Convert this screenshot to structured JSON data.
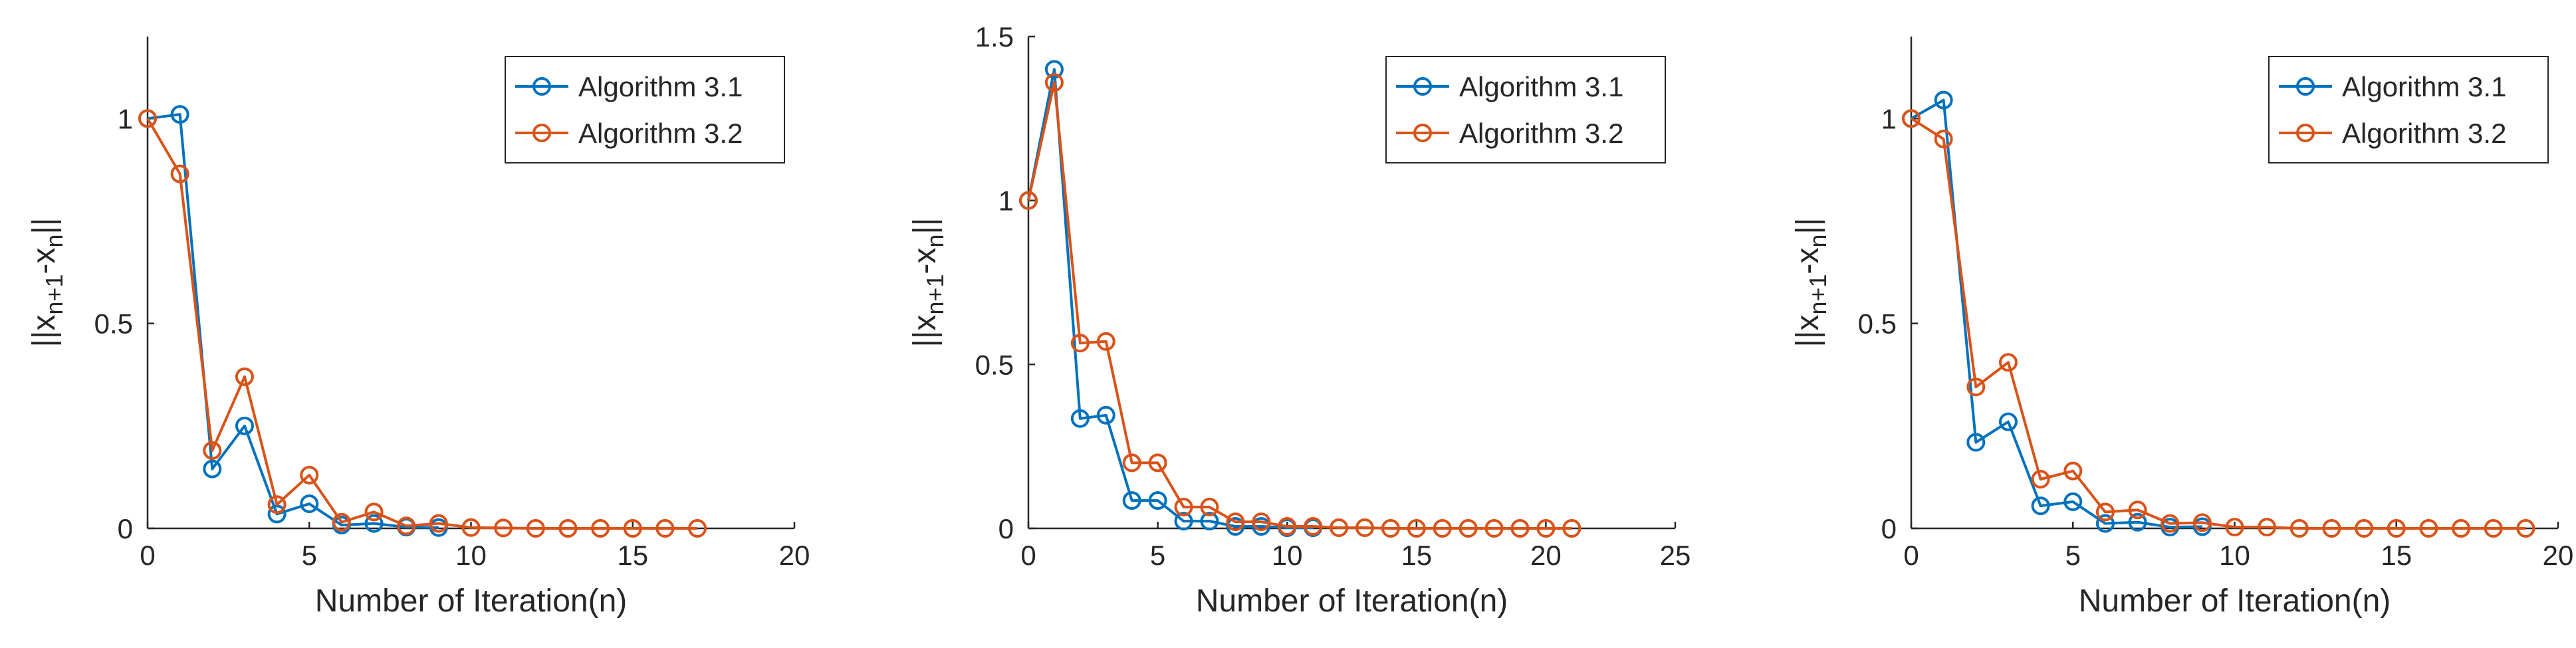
{
  "colors": {
    "algorithm_3_1": "#0072BD",
    "algorithm_3_2": "#D95319",
    "axis": "#262626"
  },
  "chart_data": [
    {
      "type": "line",
      "title": "",
      "xlabel": "Number of Iteration(n)",
      "ylabel": "||x_{n+1}-x_n||",
      "ylabel_parts": {
        "pre": "||x",
        "sub1": "n+1",
        "mid": "-x",
        "sub2": "n",
        "post": "||"
      },
      "xlim": [
        0,
        20
      ],
      "ylim": [
        0,
        1.2
      ],
      "xticks": [
        0,
        5,
        10,
        15,
        20
      ],
      "xtick_labels": [
        "0",
        "5",
        "10",
        "15",
        "20"
      ],
      "yticks": [
        0,
        0.5,
        1
      ],
      "ytick_labels": [
        "0",
        "0.5",
        "1"
      ],
      "legend_position": "top-right",
      "series": [
        {
          "name": "Algorithm 3.1",
          "color": "#0072BD",
          "x": [
            0,
            1,
            2,
            3,
            4,
            5,
            6,
            7,
            8,
            9
          ],
          "y": [
            1.0,
            1.01,
            0.145,
            0.25,
            0.035,
            0.06,
            0.008,
            0.012,
            0.003,
            0.002
          ]
        },
        {
          "name": "Algorithm 3.2",
          "color": "#D95319",
          "x": [
            0,
            1,
            2,
            3,
            4,
            5,
            6,
            7,
            8,
            9,
            10,
            11,
            12,
            13,
            14,
            15,
            16,
            17
          ],
          "y": [
            1.0,
            0.865,
            0.19,
            0.37,
            0.058,
            0.13,
            0.015,
            0.04,
            0.006,
            0.012,
            0.002,
            0.001,
            0.0,
            0.0,
            0.0,
            0.0,
            0.0,
            0.0
          ]
        }
      ]
    },
    {
      "type": "line",
      "title": "",
      "xlabel": "Number of Iteration(n)",
      "ylabel": "||x_{n+1}-x_n||",
      "ylabel_parts": {
        "pre": "||x",
        "sub1": "n+1",
        "mid": "-x",
        "sub2": "n",
        "post": "||"
      },
      "xlim": [
        0,
        25
      ],
      "ylim": [
        0,
        1.5
      ],
      "xticks": [
        0,
        5,
        10,
        15,
        20,
        25
      ],
      "xtick_labels": [
        "0",
        "5",
        "10",
        "15",
        "20",
        "25"
      ],
      "yticks": [
        0,
        0.5,
        1,
        1.5
      ],
      "ytick_labels": [
        "0",
        "0.5",
        "1",
        "1.5"
      ],
      "legend_position": "top-right",
      "series": [
        {
          "name": "Algorithm 3.1",
          "color": "#0072BD",
          "x": [
            0,
            1,
            2,
            3,
            4,
            5,
            6,
            7,
            8,
            9,
            10,
            11
          ],
          "y": [
            1.0,
            1.4,
            0.335,
            0.345,
            0.085,
            0.085,
            0.022,
            0.022,
            0.006,
            0.006,
            0.002,
            0.002
          ]
        },
        {
          "name": "Algorithm 3.2",
          "color": "#D95319",
          "x": [
            0,
            1,
            2,
            3,
            4,
            5,
            6,
            7,
            8,
            9,
            10,
            11,
            12,
            13,
            14,
            15,
            16,
            17,
            18,
            19,
            20,
            21
          ],
          "y": [
            1.0,
            1.36,
            0.565,
            0.57,
            0.2,
            0.2,
            0.065,
            0.065,
            0.02,
            0.02,
            0.006,
            0.006,
            0.002,
            0.002,
            0.0,
            0.0,
            0.0,
            0.0,
            0.0,
            0.0,
            0.0,
            0.0
          ]
        }
      ]
    },
    {
      "type": "line",
      "title": "",
      "xlabel": "Number of Iteration(n)",
      "ylabel": "||x_{n+1}-x_n||",
      "ylabel_parts": {
        "pre": "||x",
        "sub1": "n+1",
        "mid": "-x",
        "sub2": "n",
        "post": "||"
      },
      "xlim": [
        0,
        20
      ],
      "ylim": [
        0,
        1.2
      ],
      "xticks": [
        0,
        5,
        10,
        15,
        20
      ],
      "xtick_labels": [
        "0",
        "5",
        "10",
        "15",
        "20"
      ],
      "yticks": [
        0,
        0.5,
        1
      ],
      "ytick_labels": [
        "0",
        "0.5",
        "1"
      ],
      "legend_position": "top-right",
      "series": [
        {
          "name": "Algorithm 3.1",
          "color": "#0072BD",
          "x": [
            0,
            1,
            2,
            3,
            4,
            5,
            6,
            7,
            8,
            9
          ],
          "y": [
            1.0,
            1.045,
            0.21,
            0.26,
            0.055,
            0.065,
            0.012,
            0.015,
            0.003,
            0.004
          ]
        },
        {
          "name": "Algorithm 3.2",
          "color": "#D95319",
          "x": [
            0,
            1,
            2,
            3,
            4,
            5,
            6,
            7,
            8,
            9,
            10,
            11,
            12,
            13,
            14,
            15,
            16,
            17,
            18,
            19
          ],
          "y": [
            1.0,
            0.95,
            0.345,
            0.405,
            0.12,
            0.14,
            0.04,
            0.045,
            0.012,
            0.014,
            0.003,
            0.003,
            0.0,
            0.0,
            0.0,
            0.0,
            0.0,
            0.0,
            0.0,
            0.0
          ]
        }
      ]
    }
  ]
}
